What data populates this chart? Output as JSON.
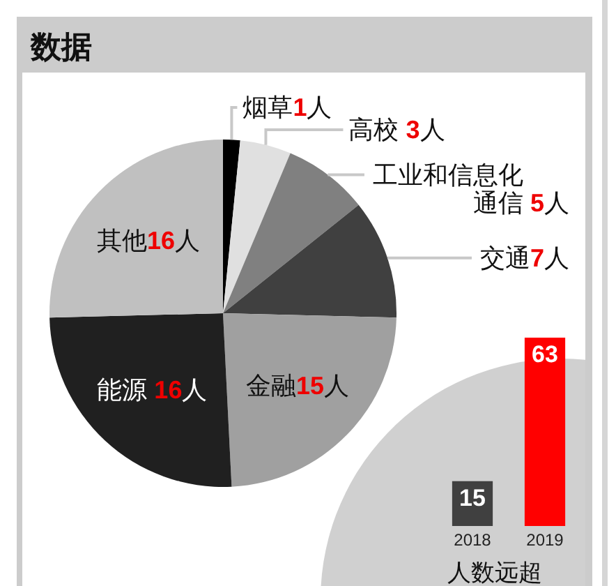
{
  "chart_data": [
    {
      "type": "pie",
      "title": "数据",
      "categories": [
        "烟草",
        "高校",
        "工业和信息化通信",
        "交通",
        "金融",
        "能源",
        "其他"
      ],
      "values": [
        1,
        3,
        5,
        7,
        15,
        16,
        16
      ],
      "colors": [
        "#000000",
        "#e0e0e0",
        "#808080",
        "#404040",
        "#a0a0a0",
        "#202020",
        "#c0c0c0"
      ],
      "value_labels": [
        "1人",
        " 3人",
        " 5人",
        "7人",
        "15人",
        " 16人",
        "16人"
      ]
    },
    {
      "type": "bar",
      "categories": [
        "2018",
        "2019"
      ],
      "values": [
        15,
        63
      ],
      "colors": [
        "#404040",
        "#ff0000"
      ],
      "data_labels": true,
      "annotations": [
        "人数远超"
      ]
    }
  ]
}
